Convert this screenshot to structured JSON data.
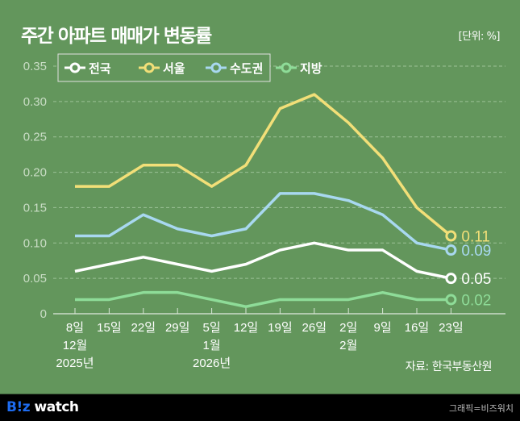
{
  "title": "주간 아파트 매매가 변동률",
  "unit": "[단위: %]",
  "source": "자료: 한국부동산원",
  "footer": {
    "logo_b": "B!z",
    "logo_rest": " watch",
    "credit": "그래픽=비즈워치"
  },
  "chart_data": {
    "type": "line",
    "title": "주간 아파트 매매가 변동률",
    "ylim": [
      0,
      0.35
    ],
    "yticks": [
      "0",
      "0.05",
      "0.10",
      "0.15",
      "0.20",
      "0.25",
      "0.30",
      "0.35"
    ],
    "grid": true,
    "legend": "top-left",
    "x_labels": [
      [
        "8일",
        "12월",
        "2025년"
      ],
      [
        "15일"
      ],
      [
        "22일"
      ],
      [
        "29일"
      ],
      [
        "5일",
        "1월",
        "2026년"
      ],
      [
        "12일"
      ],
      [
        "19일"
      ],
      [
        "26일"
      ],
      [
        "2일",
        "2월"
      ],
      [
        "9일"
      ],
      [
        "16일"
      ],
      [
        "23일"
      ]
    ],
    "series": [
      {
        "name": "전국",
        "color": "#ffffff",
        "values": [
          0.06,
          0.07,
          0.08,
          0.07,
          0.06,
          0.07,
          0.09,
          0.1,
          0.09,
          0.09,
          0.06,
          0.05
        ],
        "end_label": "0.05"
      },
      {
        "name": "서울",
        "color": "#f2df78",
        "values": [
          0.18,
          0.18,
          0.21,
          0.21,
          0.18,
          0.21,
          0.29,
          0.31,
          0.27,
          0.22,
          0.15,
          0.11
        ],
        "end_label": "0.11"
      },
      {
        "name": "수도권",
        "color": "#a8d8f0",
        "values": [
          0.11,
          0.11,
          0.14,
          0.12,
          0.11,
          0.12,
          0.17,
          0.17,
          0.16,
          0.14,
          0.1,
          0.09
        ],
        "end_label": "0.09"
      },
      {
        "name": "지방",
        "color": "#8edc98",
        "values": [
          0.02,
          0.02,
          0.03,
          0.03,
          0.02,
          0.01,
          0.02,
          0.02,
          0.02,
          0.03,
          0.02,
          0.02
        ],
        "end_label": "0.02"
      }
    ]
  }
}
